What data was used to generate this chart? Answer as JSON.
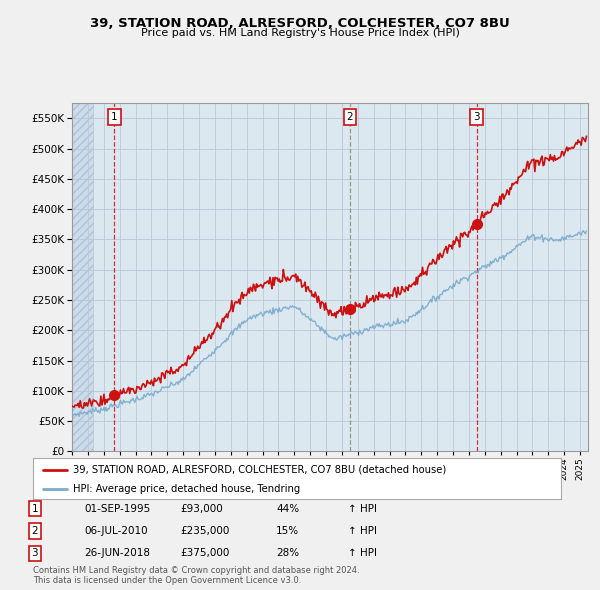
{
  "title": "39, STATION ROAD, ALRESFORD, COLCHESTER, CO7 8BU",
  "subtitle": "Price paid vs. HM Land Registry's House Price Index (HPI)",
  "red_label": "39, STATION ROAD, ALRESFORD, COLCHESTER, CO7 8BU (detached house)",
  "blue_label": "HPI: Average price, detached house, Tendring",
  "transactions": [
    {
      "num": 1,
      "date_label": "01-SEP-1995",
      "price": 93000,
      "pct": "44%",
      "dir": "↑",
      "x": 1995.67
    },
    {
      "num": 2,
      "date_label": "06-JUL-2010",
      "price": 235000,
      "pct": "15%",
      "dir": "↑",
      "x": 2010.51
    },
    {
      "num": 3,
      "date_label": "26-JUN-2018",
      "price": 375000,
      "pct": "28%",
      "dir": "↑",
      "x": 2018.49
    }
  ],
  "footnote1": "Contains HM Land Registry data © Crown copyright and database right 2024.",
  "footnote2": "This data is licensed under the Open Government Licence v3.0.",
  "ylim": [
    0,
    575000
  ],
  "yticks": [
    0,
    50000,
    100000,
    150000,
    200000,
    250000,
    300000,
    350000,
    400000,
    450000,
    500000,
    550000
  ],
  "xlim": [
    1993.0,
    2025.5
  ],
  "background_color": "#f0f0f0",
  "plot_bg": "#dce8f0",
  "grid_color": "#b8c8d8",
  "hatch_region_end": 1994.3,
  "red_color": "#cc1111",
  "blue_color": "#7aaacc",
  "vline1_color": "#cc1111",
  "vline2_color": "#888888",
  "vline3_color": "#cc1111"
}
